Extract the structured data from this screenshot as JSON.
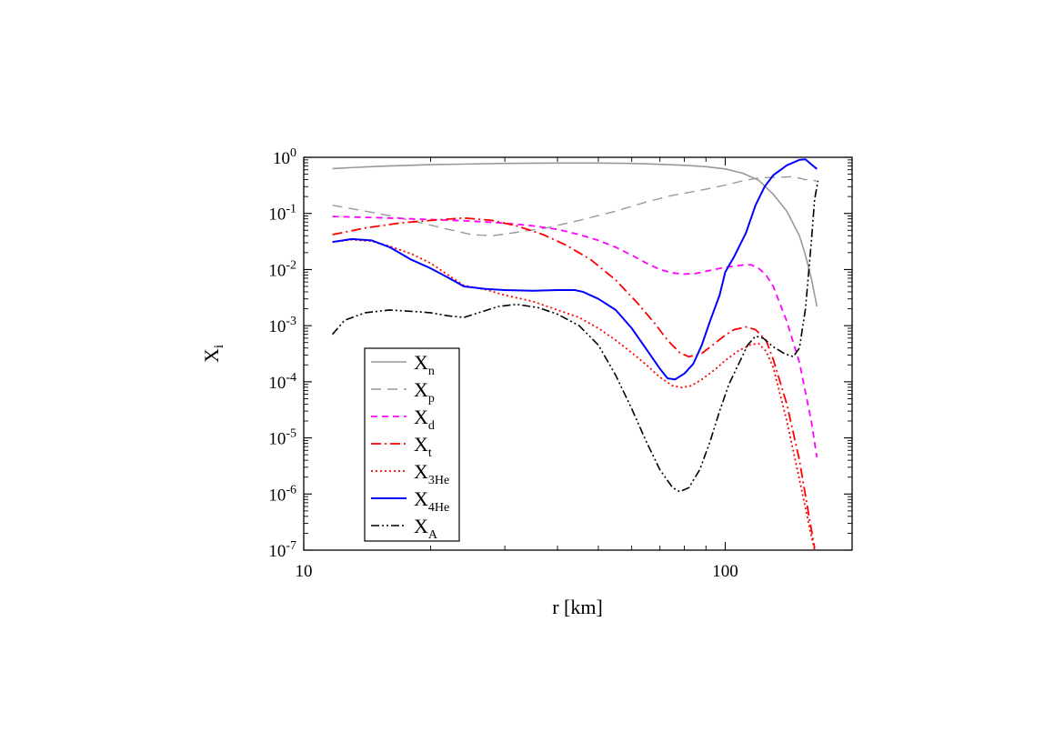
{
  "chart_data": {
    "type": "line",
    "title": "",
    "xlabel": "r [km]",
    "ylabel_main": "X",
    "ylabel_sub": "i",
    "xscale": "log",
    "yscale": "log",
    "xlim": [
      10,
      200
    ],
    "ylim": [
      1e-07,
      1
    ],
    "grid": false,
    "legend_position": "lower-left",
    "x_ticks": [
      {
        "value": 10,
        "label": "10"
      },
      {
        "value": 100,
        "label": "100"
      }
    ],
    "y_ticks": [
      {
        "value": 1,
        "base": "10",
        "exp": "0"
      },
      {
        "value": 0.1,
        "base": "10",
        "exp": "-1"
      },
      {
        "value": 0.01,
        "base": "10",
        "exp": "-2"
      },
      {
        "value": 0.001,
        "base": "10",
        "exp": "-3"
      },
      {
        "value": 0.0001,
        "base": "10",
        "exp": "-4"
      },
      {
        "value": 1e-05,
        "base": "10",
        "exp": "-5"
      },
      {
        "value": 1e-06,
        "base": "10",
        "exp": "-6"
      },
      {
        "value": 1e-07,
        "base": "10",
        "exp": "-7"
      }
    ],
    "series": [
      {
        "name_main": "X",
        "name_sub": "n",
        "color": "#999999",
        "dash": "",
        "width": 1.6,
        "points": [
          [
            11.7,
            0.63
          ],
          [
            15,
            0.69
          ],
          [
            20,
            0.74
          ],
          [
            30,
            0.78
          ],
          [
            40,
            0.79
          ],
          [
            50,
            0.79
          ],
          [
            60,
            0.78
          ],
          [
            70,
            0.75
          ],
          [
            80,
            0.72
          ],
          [
            90,
            0.68
          ],
          [
            100,
            0.62
          ],
          [
            110,
            0.52
          ],
          [
            120,
            0.39
          ],
          [
            130,
            0.22
          ],
          [
            140,
            0.11
          ],
          [
            150,
            0.04
          ],
          [
            155,
            0.018
          ],
          [
            160,
            0.007
          ],
          [
            165,
            0.0022
          ]
        ]
      },
      {
        "name_main": "X",
        "name_sub": "p",
        "color": "#999999",
        "dash": "11,7",
        "width": 1.4,
        "points": [
          [
            11.7,
            0.14
          ],
          [
            15,
            0.1
          ],
          [
            18,
            0.075
          ],
          [
            22,
            0.052
          ],
          [
            25,
            0.042
          ],
          [
            28,
            0.04
          ],
          [
            32,
            0.046
          ],
          [
            38,
            0.056
          ],
          [
            45,
            0.075
          ],
          [
            55,
            0.11
          ],
          [
            65,
            0.16
          ],
          [
            75,
            0.21
          ],
          [
            90,
            0.27
          ],
          [
            100,
            0.32
          ],
          [
            110,
            0.38
          ],
          [
            120,
            0.43
          ],
          [
            130,
            0.44
          ],
          [
            145,
            0.45
          ],
          [
            155,
            0.4
          ],
          [
            165,
            0.38
          ]
        ]
      },
      {
        "name_main": "X",
        "name_sub": "d",
        "color": "#ff00ff",
        "dash": "7,5",
        "width": 1.8,
        "points": [
          [
            11.7,
            0.088
          ],
          [
            15,
            0.084
          ],
          [
            20,
            0.078
          ],
          [
            25,
            0.073
          ],
          [
            30,
            0.067
          ],
          [
            35,
            0.06
          ],
          [
            40,
            0.052
          ],
          [
            45,
            0.042
          ],
          [
            50,
            0.033
          ],
          [
            55,
            0.025
          ],
          [
            60,
            0.018
          ],
          [
            65,
            0.013
          ],
          [
            70,
            0.01
          ],
          [
            75,
            0.0087
          ],
          [
            80,
            0.0083
          ],
          [
            85,
            0.0085
          ],
          [
            90,
            0.0093
          ],
          [
            100,
            0.011
          ],
          [
            110,
            0.012
          ],
          [
            115,
            0.0122
          ],
          [
            120,
            0.0105
          ],
          [
            125,
            0.008
          ],
          [
            130,
            0.005
          ],
          [
            140,
            0.0012
          ],
          [
            150,
            0.00022
          ],
          [
            160,
            2e-05
          ],
          [
            165,
            4.5e-06
          ]
        ]
      },
      {
        "name_main": "X",
        "name_sub": "t",
        "color": "#ff0000",
        "dash": "11,4,2,4",
        "width": 1.8,
        "points": [
          [
            11.7,
            0.042
          ],
          [
            14,
            0.055
          ],
          [
            17,
            0.068
          ],
          [
            20,
            0.075
          ],
          [
            24,
            0.083
          ],
          [
            28,
            0.075
          ],
          [
            32,
            0.06
          ],
          [
            37,
            0.042
          ],
          [
            42,
            0.027
          ],
          [
            48,
            0.015
          ],
          [
            55,
            0.0065
          ],
          [
            62,
            0.0025
          ],
          [
            68,
            0.0011
          ],
          [
            73,
            0.00055
          ],
          [
            78,
            0.00033
          ],
          [
            82,
            0.00028
          ],
          [
            88,
            0.00032
          ],
          [
            95,
            0.0005
          ],
          [
            100,
            0.00068
          ],
          [
            105,
            0.00085
          ],
          [
            112,
            0.00095
          ],
          [
            118,
            0.00085
          ],
          [
            125,
            0.00055
          ],
          [
            130,
            0.00025
          ],
          [
            140,
            4e-05
          ],
          [
            150,
            4e-06
          ],
          [
            158,
            4e-07
          ],
          [
            163,
            1.1e-07
          ]
        ]
      },
      {
        "name_main": "X",
        "name_sub": "3He",
        "color": "#ff0000",
        "dash": "2,3",
        "width": 1.8,
        "points": [
          [
            11.7,
            0.031
          ],
          [
            13,
            0.034
          ],
          [
            14.5,
            0.032
          ],
          [
            16,
            0.026
          ],
          [
            18,
            0.019
          ],
          [
            20,
            0.013
          ],
          [
            22,
            0.008
          ],
          [
            24,
            0.0052
          ],
          [
            27,
            0.0044
          ],
          [
            30,
            0.0035
          ],
          [
            35,
            0.0027
          ],
          [
            40,
            0.0019
          ],
          [
            45,
            0.0014
          ],
          [
            50,
            0.0009
          ],
          [
            55,
            0.00055
          ],
          [
            60,
            0.00033
          ],
          [
            65,
            0.0002
          ],
          [
            70,
            0.00012
          ],
          [
            75,
            8.5e-05
          ],
          [
            79,
            7.9e-05
          ],
          [
            83,
            8.5e-05
          ],
          [
            88,
            0.00011
          ],
          [
            95,
            0.00017
          ],
          [
            100,
            0.00024
          ],
          [
            107,
            0.00035
          ],
          [
            115,
            0.00046
          ],
          [
            120,
            0.00048
          ],
          [
            125,
            0.00035
          ],
          [
            130,
            0.00018
          ],
          [
            140,
            2e-05
          ],
          [
            150,
            1.8e-06
          ],
          [
            160,
            1.8e-07
          ],
          [
            163,
            1e-07
          ]
        ]
      },
      {
        "name_main": "X",
        "name_sub": "4He",
        "color": "#0000ff",
        "dash": "",
        "width": 2.0,
        "points": [
          [
            11.7,
            0.031
          ],
          [
            13,
            0.035
          ],
          [
            14.5,
            0.033
          ],
          [
            16,
            0.025
          ],
          [
            18,
            0.015
          ],
          [
            20,
            0.0105
          ],
          [
            22,
            0.0072
          ],
          [
            24,
            0.005
          ],
          [
            27,
            0.0045
          ],
          [
            30,
            0.0043
          ],
          [
            35,
            0.0042
          ],
          [
            40,
            0.0043
          ],
          [
            44,
            0.0043
          ],
          [
            46,
            0.004
          ],
          [
            50,
            0.003
          ],
          [
            55,
            0.0019
          ],
          [
            60,
            0.0009
          ],
          [
            65,
            0.00038
          ],
          [
            70,
            0.00017
          ],
          [
            73,
            0.000115
          ],
          [
            76,
            0.00011
          ],
          [
            80,
            0.00014
          ],
          [
            84,
            0.00021
          ],
          [
            88,
            0.00045
          ],
          [
            92,
            0.0012
          ],
          [
            97,
            0.0035
          ],
          [
            100,
            0.009
          ],
          [
            105,
            0.017
          ],
          [
            112,
            0.045
          ],
          [
            118,
            0.14
          ],
          [
            124,
            0.3
          ],
          [
            130,
            0.48
          ],
          [
            140,
            0.72
          ],
          [
            150,
            0.9
          ],
          [
            155,
            0.92
          ],
          [
            160,
            0.75
          ],
          [
            165,
            0.62
          ]
        ]
      },
      {
        "name_main": "X",
        "name_sub": "A",
        "color": "#000000",
        "dash": "9,3,2,3,2,3",
        "width": 1.6,
        "points": [
          [
            11.7,
            0.0007
          ],
          [
            12.5,
            0.00125
          ],
          [
            14,
            0.0017
          ],
          [
            16,
            0.0019
          ],
          [
            18,
            0.0018
          ],
          [
            20,
            0.0017
          ],
          [
            22,
            0.0015
          ],
          [
            24,
            0.0014
          ],
          [
            26,
            0.0017
          ],
          [
            29,
            0.0022
          ],
          [
            32,
            0.0024
          ],
          [
            36,
            0.0021
          ],
          [
            40,
            0.0016
          ],
          [
            45,
            0.001
          ],
          [
            50,
            0.00045
          ],
          [
            55,
            0.00013
          ],
          [
            60,
            3.3e-05
          ],
          [
            65,
            8.5e-06
          ],
          [
            70,
            2.7e-06
          ],
          [
            75,
            1.3e-06
          ],
          [
            78,
            1.1e-06
          ],
          [
            82,
            1.3e-06
          ],
          [
            87,
            2.7e-06
          ],
          [
            92,
            8.5e-06
          ],
          [
            97,
            3e-05
          ],
          [
            102,
            9e-05
          ],
          [
            108,
            0.00022
          ],
          [
            113,
            0.00045
          ],
          [
            118,
            0.00065
          ],
          [
            123,
            0.0006
          ],
          [
            130,
            0.00042
          ],
          [
            138,
            0.00032
          ],
          [
            145,
            0.00028
          ],
          [
            150,
            0.0004
          ],
          [
            155,
            0.002
          ],
          [
            160,
            0.03
          ],
          [
            163,
            0.18
          ],
          [
            166,
            0.38
          ]
        ]
      }
    ]
  }
}
